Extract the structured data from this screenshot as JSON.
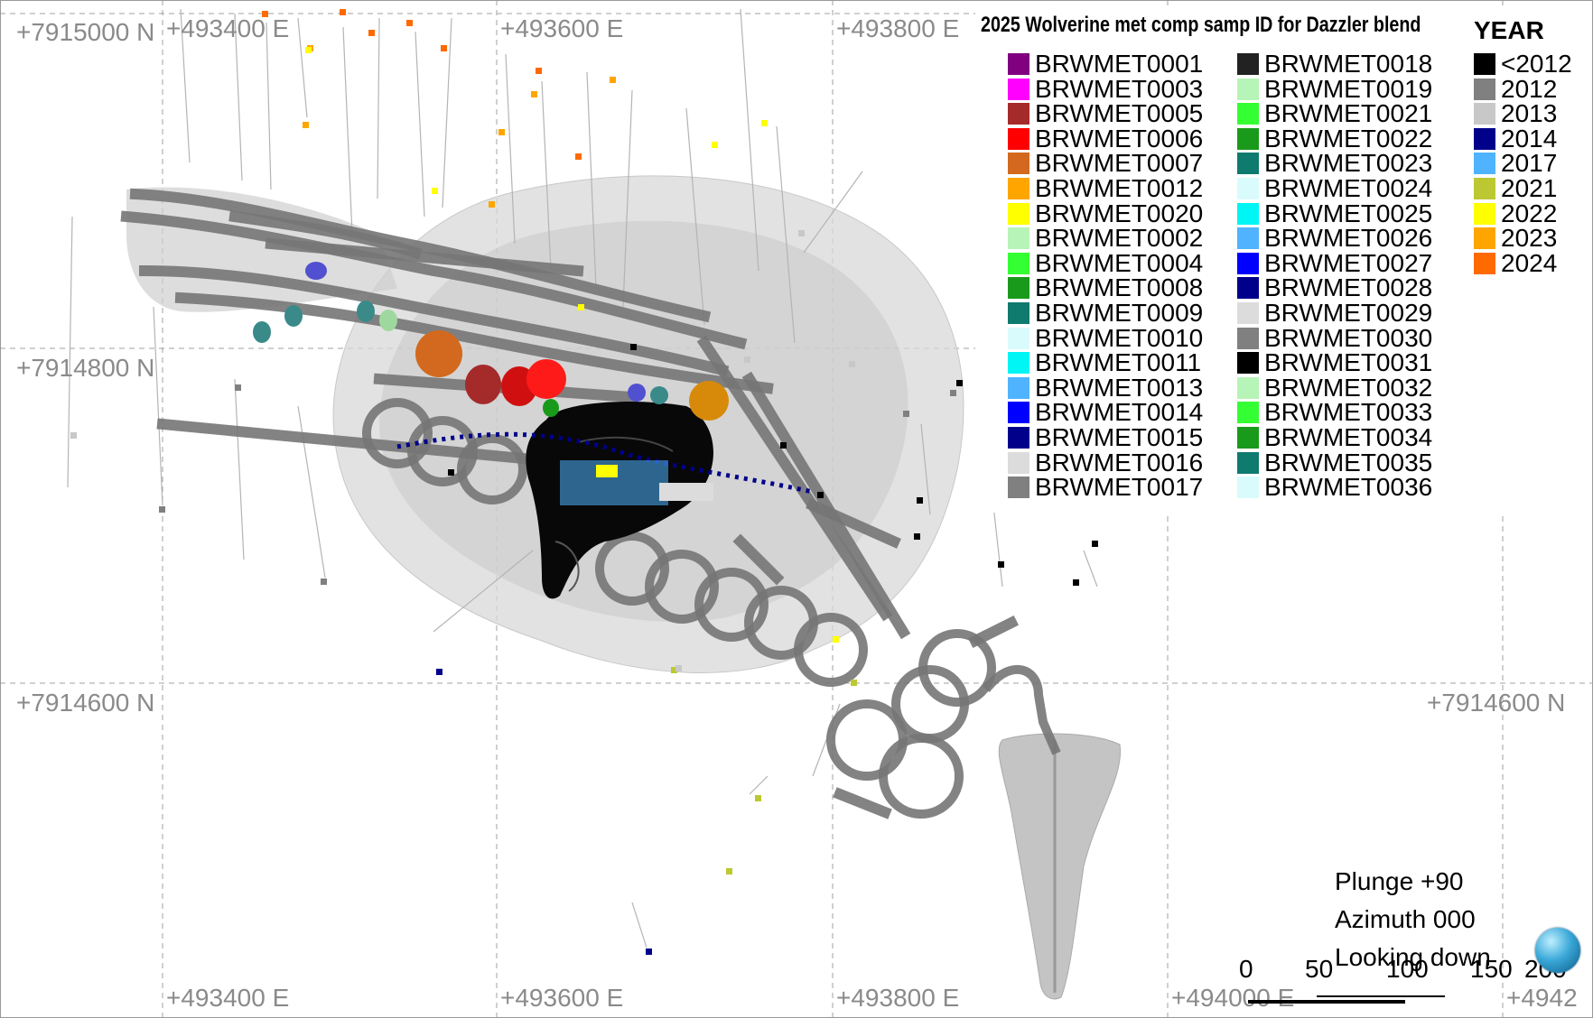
{
  "view": {
    "plunge": "Plunge +90",
    "azimuth": "Azimuth 000",
    "looking": "Looking down"
  },
  "grid": {
    "easting_labels": [
      "+493400 E",
      "+493600 E",
      "+493800 E",
      "+494000 E",
      "+4942"
    ],
    "northing_labels": [
      "+7915000 N",
      "+7914800 N",
      "+7914600 N"
    ]
  },
  "scale_bar": {
    "ticks": [
      "0",
      "50",
      "100",
      "150",
      "200"
    ]
  },
  "legend": {
    "title": "2025 Wolverine met comp samp ID for Dazzler blend",
    "samples": [
      {
        "id": "BRWMET0001",
        "color": "#800080"
      },
      {
        "id": "BRWMET0003",
        "color": "#ff00ff"
      },
      {
        "id": "BRWMET0005",
        "color": "#a52a2a"
      },
      {
        "id": "BRWMET0006",
        "color": "#ff0000"
      },
      {
        "id": "BRWMET0007",
        "color": "#d2691e"
      },
      {
        "id": "BRWMET0012",
        "color": "#ffa500"
      },
      {
        "id": "BRWMET0020",
        "color": "#ffff00"
      },
      {
        "id": "BRWMET0002",
        "color": "#b7f4b7"
      },
      {
        "id": "BRWMET0004",
        "color": "#33ff33"
      },
      {
        "id": "BRWMET0008",
        "color": "#1a9a1a"
      },
      {
        "id": "BRWMET0009",
        "color": "#0f7a6e"
      },
      {
        "id": "BRWMET0010",
        "color": "#d9fbfb"
      },
      {
        "id": "BRWMET0011",
        "color": "#00f5f5"
      },
      {
        "id": "BRWMET0013",
        "color": "#4fb3ff"
      },
      {
        "id": "BRWMET0014",
        "color": "#0000ff"
      },
      {
        "id": "BRWMET0015",
        "color": "#00008b"
      },
      {
        "id": "BRWMET0016",
        "color": "#dcdcdc"
      },
      {
        "id": "BRWMET0017",
        "color": "#808080"
      },
      {
        "id": "BRWMET0018",
        "color": "#222222"
      },
      {
        "id": "BRWMET0019",
        "color": "#b7f4b7"
      },
      {
        "id": "BRWMET0021",
        "color": "#33ff33"
      },
      {
        "id": "BRWMET0022",
        "color": "#1a9a1a"
      },
      {
        "id": "BRWMET0023",
        "color": "#0f7a6e"
      },
      {
        "id": "BRWMET0024",
        "color": "#d9fbfb"
      },
      {
        "id": "BRWMET0025",
        "color": "#00f5f5"
      },
      {
        "id": "BRWMET0026",
        "color": "#4fb3ff"
      },
      {
        "id": "BRWMET0027",
        "color": "#0000ff"
      },
      {
        "id": "BRWMET0028",
        "color": "#00008b"
      },
      {
        "id": "BRWMET0029",
        "color": "#dcdcdc"
      },
      {
        "id": "BRWMET0030",
        "color": "#808080"
      },
      {
        "id": "BRWMET0031",
        "color": "#000000"
      },
      {
        "id": "BRWMET0032",
        "color": "#b7f4b7"
      },
      {
        "id": "BRWMET0033",
        "color": "#33ff33"
      },
      {
        "id": "BRWMET0034",
        "color": "#1a9a1a"
      },
      {
        "id": "BRWMET0035",
        "color": "#0f7a6e"
      },
      {
        "id": "BRWMET0036",
        "color": "#d9fbfb"
      }
    ],
    "year_title": "YEAR",
    "years": [
      {
        "label": "<2012",
        "color": "#000000"
      },
      {
        "label": "2012",
        "color": "#808080"
      },
      {
        "label": "2013",
        "color": "#c8c8c8"
      },
      {
        "label": "2014",
        "color": "#00008b"
      },
      {
        "label": "2017",
        "color": "#4fb3ff"
      },
      {
        "label": "2021",
        "color": "#bcc832"
      },
      {
        "label": "2022",
        "color": "#ffff00"
      },
      {
        "label": "2023",
        "color": "#ffa500"
      },
      {
        "label": "2024",
        "color": "#ff6a00"
      }
    ]
  },
  "colors": {
    "background": "#ffffff",
    "grid_line": "#a0a0a0",
    "grid_text": "#8a8a8a",
    "underground_workings": "#767676",
    "shell_outer": "#d8d8d8",
    "shell_inner": "#c4c4c4",
    "stope_body": "#080808",
    "drillhole_trace": "#b4b4b4"
  }
}
